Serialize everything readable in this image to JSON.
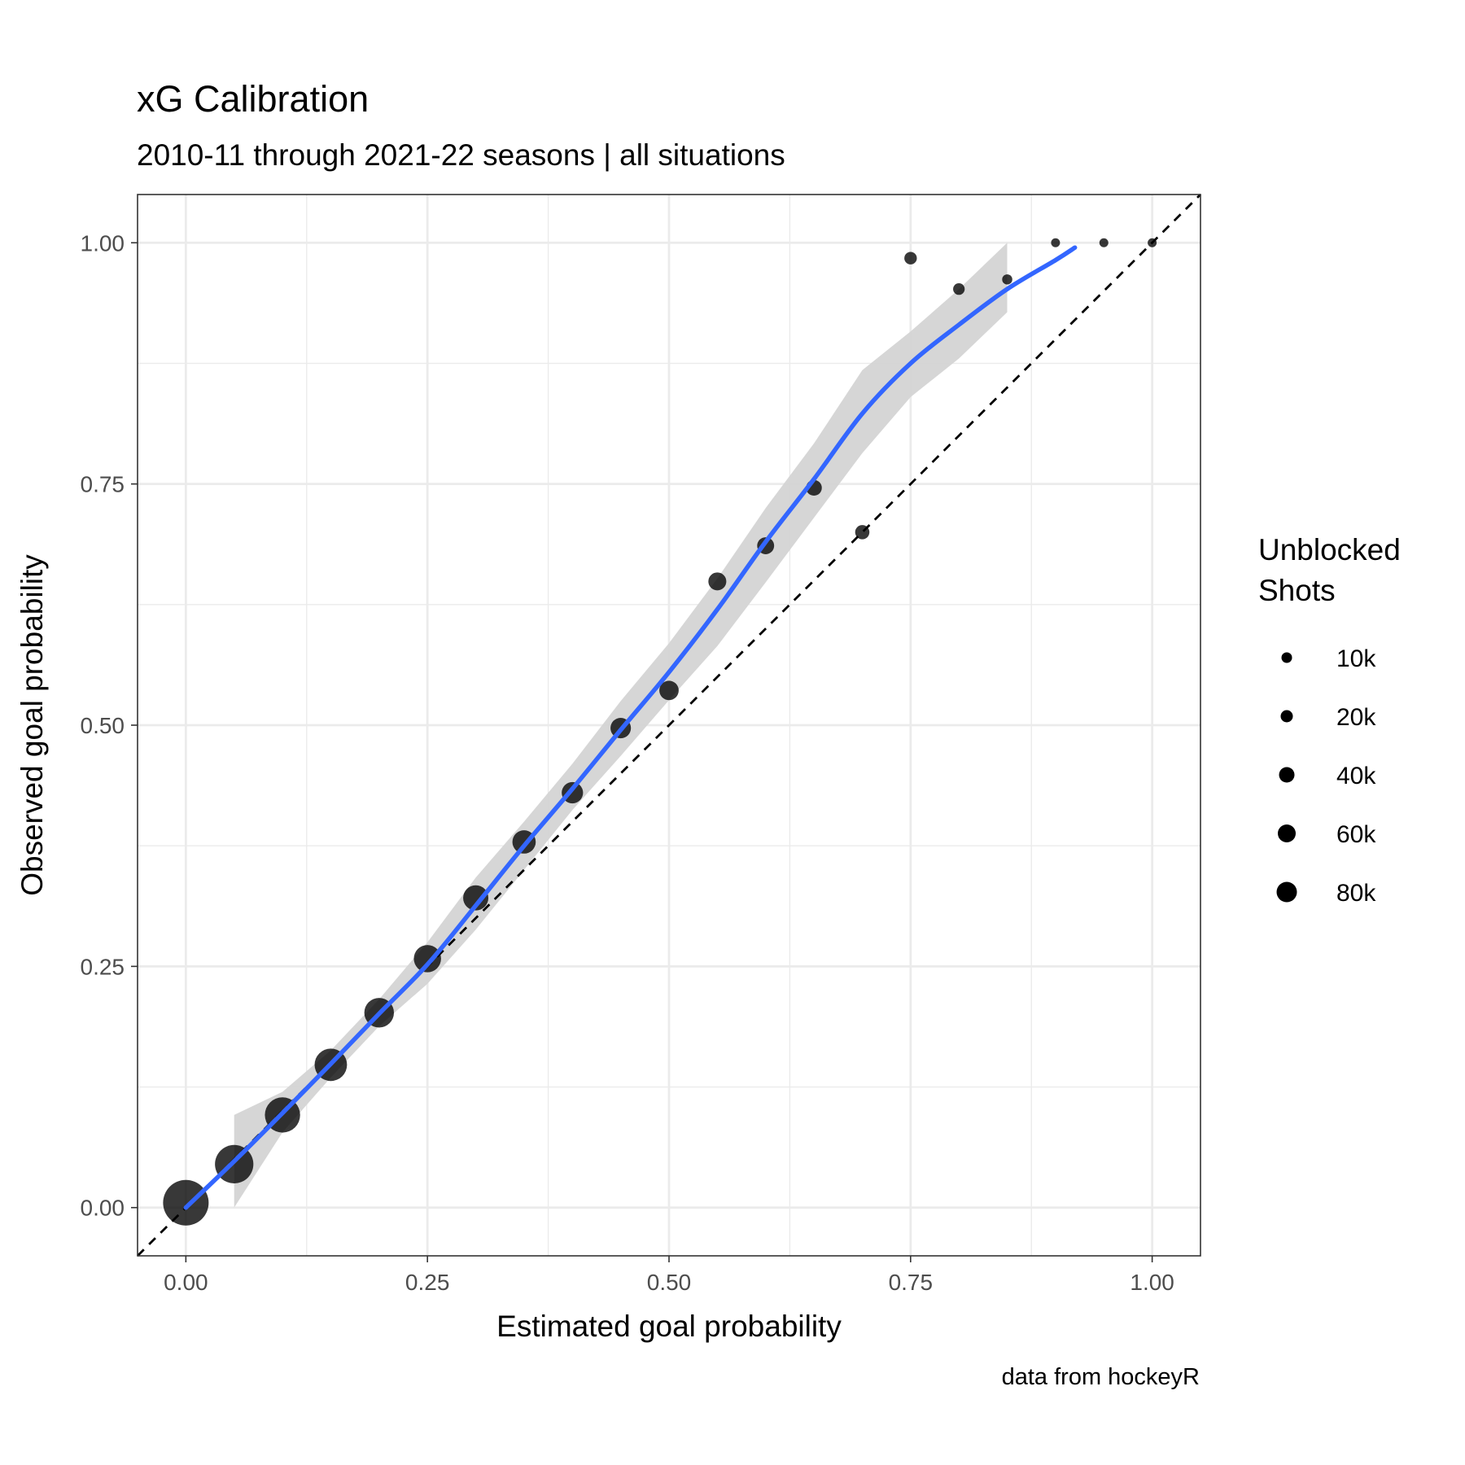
{
  "chart_data": {
    "type": "scatter",
    "title": "xG Calibration",
    "subtitle": "2010-11 through 2021-22 seasons | all situations",
    "xlabel": "Estimated goal probability",
    "ylabel": "Observed goal probability",
    "caption": "data from hockeyR",
    "xlim": [
      -0.05,
      1.05
    ],
    "ylim": [
      -0.05,
      1.05
    ],
    "x_ticks": [
      0,
      0.25,
      0.5,
      0.75,
      1
    ],
    "x_tick_labels": [
      "0.00",
      "0.25",
      "0.50",
      "0.75",
      "1.00"
    ],
    "y_ticks": [
      0,
      0.25,
      0.5,
      0.75,
      1
    ],
    "y_tick_labels": [
      "0.00",
      "0.25",
      "0.50",
      "0.75",
      "1.00"
    ],
    "grid": true,
    "reference_line": "y = x (dashed)",
    "legend": {
      "title_lines": [
        "Unblocked",
        "Shots"
      ],
      "placement": "right",
      "entries": [
        {
          "label": "10k",
          "value": 10000
        },
        {
          "label": "20k",
          "value": 20000
        },
        {
          "label": "40k",
          "value": 40000
        },
        {
          "label": "60k",
          "value": 60000
        },
        {
          "label": "80k",
          "value": 80000
        }
      ]
    },
    "points": [
      {
        "x": 0.0,
        "y": 0.005,
        "shots": 300000
      },
      {
        "x": 0.05,
        "y": 0.045,
        "shots": 110000
      },
      {
        "x": 0.1,
        "y": 0.096,
        "shots": 70000
      },
      {
        "x": 0.15,
        "y": 0.148,
        "shots": 45000
      },
      {
        "x": 0.2,
        "y": 0.202,
        "shots": 28000
      },
      {
        "x": 0.25,
        "y": 0.258,
        "shots": 18000
      },
      {
        "x": 0.3,
        "y": 0.321,
        "shots": 12000
      },
      {
        "x": 0.35,
        "y": 0.379,
        "shots": 8000
      },
      {
        "x": 0.4,
        "y": 0.43,
        "shots": 5000
      },
      {
        "x": 0.45,
        "y": 0.497,
        "shots": 4000
      },
      {
        "x": 0.5,
        "y": 0.536,
        "shots": 3000
      },
      {
        "x": 0.55,
        "y": 0.649,
        "shots": 2000
      },
      {
        "x": 0.6,
        "y": 0.686,
        "shots": 1500
      },
      {
        "x": 0.65,
        "y": 0.746,
        "shots": 1000
      },
      {
        "x": 0.7,
        "y": 0.7,
        "shots": 600
      },
      {
        "x": 0.75,
        "y": 0.984,
        "shots": 300
      },
      {
        "x": 0.8,
        "y": 0.952,
        "shots": 200
      },
      {
        "x": 0.85,
        "y": 0.962,
        "shots": 100
      },
      {
        "x": 0.9,
        "y": 1.0,
        "shots": 50
      },
      {
        "x": 0.95,
        "y": 1.0,
        "shots": 30
      },
      {
        "x": 1.0,
        "y": 1.0,
        "shots": 40
      }
    ],
    "smooth": {
      "color": "#3366FF",
      "x": [
        0.0,
        0.05,
        0.1,
        0.15,
        0.2,
        0.25,
        0.3,
        0.35,
        0.4,
        0.45,
        0.5,
        0.55,
        0.6,
        0.65,
        0.7,
        0.75,
        0.8,
        0.85,
        0.9,
        0.92
      ],
      "y": [
        0.0,
        0.048,
        0.098,
        0.149,
        0.201,
        0.252,
        0.313,
        0.375,
        0.434,
        0.495,
        0.555,
        0.62,
        0.69,
        0.755,
        0.823,
        0.875,
        0.915,
        0.952,
        0.982,
        0.995
      ],
      "lower": [
        null,
        0.0,
        0.078,
        0.135,
        0.188,
        0.232,
        0.288,
        0.35,
        0.412,
        0.468,
        0.526,
        0.582,
        0.648,
        0.715,
        0.782,
        0.84,
        0.88,
        0.928,
        null,
        null
      ],
      "upper": [
        null,
        0.096,
        0.12,
        0.163,
        0.216,
        0.275,
        0.342,
        0.4,
        0.46,
        0.525,
        0.585,
        0.652,
        0.725,
        0.792,
        0.868,
        0.908,
        0.952,
        1.0,
        null,
        null
      ]
    },
    "colors": {
      "band": "#d4d4d4",
      "points": "#000000",
      "grid": "#ebebeb",
      "border": "#333333"
    }
  }
}
